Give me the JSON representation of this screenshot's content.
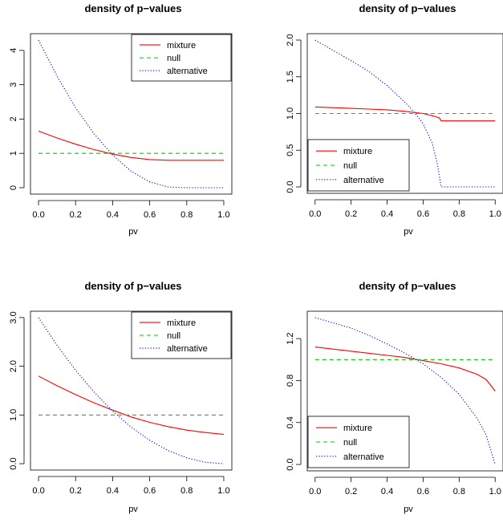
{
  "chart_data": [
    {
      "type": "line",
      "title": "density of p−values",
      "xlabel": "pv",
      "ylabel": "",
      "xlim": [
        0,
        1
      ],
      "ylim": [
        0,
        4.3
      ],
      "xticks": [
        "0.0",
        "0.2",
        "0.4",
        "0.6",
        "0.8",
        "1.0"
      ],
      "yticks": [
        "0",
        "1",
        "2",
        "3",
        "4"
      ],
      "legend_position": "top-right",
      "series": [
        {
          "name": "mixture",
          "color": "#ff0000",
          "style": "solid",
          "x": [
            0,
            0.1,
            0.2,
            0.3,
            0.4,
            0.5,
            0.6,
            0.7,
            0.8,
            0.9,
            1.0
          ],
          "y": [
            1.65,
            1.45,
            1.27,
            1.11,
            0.98,
            0.88,
            0.82,
            0.8,
            0.8,
            0.8,
            0.8
          ]
        },
        {
          "name": "null",
          "color": "#00cc00",
          "style": "dashed",
          "x": [
            0,
            1
          ],
          "y": [
            1,
            1
          ]
        },
        {
          "name": "alternative",
          "color": "#0000ff",
          "style": "dotted",
          "x": [
            0,
            0.1,
            0.2,
            0.3,
            0.4,
            0.5,
            0.6,
            0.7,
            0.8,
            0.9,
            1.0
          ],
          "y": [
            4.3,
            3.25,
            2.33,
            1.57,
            0.95,
            0.48,
            0.17,
            0.02,
            0,
            0,
            0
          ]
        }
      ]
    },
    {
      "type": "line",
      "title": "density of p−values",
      "xlabel": "pv",
      "ylabel": "",
      "xlim": [
        0,
        1
      ],
      "ylim": [
        0,
        2.0
      ],
      "xticks": [
        "0.0",
        "0.2",
        "0.4",
        "0.6",
        "0.8",
        "1.0"
      ],
      "yticks": [
        "0.0",
        "0.5",
        "1.0",
        "1.5",
        "2.0"
      ],
      "legend_position": "bottom-left",
      "series": [
        {
          "name": "mixture",
          "color": "#ff0000",
          "style": "solid",
          "x": [
            0,
            0.1,
            0.2,
            0.3,
            0.4,
            0.5,
            0.6,
            0.65,
            0.69,
            0.7,
            0.8,
            0.9,
            1.0
          ],
          "y": [
            1.09,
            1.08,
            1.07,
            1.06,
            1.05,
            1.03,
            1.0,
            0.97,
            0.94,
            0.9,
            0.9,
            0.9,
            0.9
          ]
        },
        {
          "name": "null",
          "color": "#00cc00",
          "style": "dashed",
          "x": [
            0,
            1
          ],
          "y": [
            1,
            1
          ]
        },
        {
          "name": "alternative",
          "color": "#0000ff",
          "style": "dotted",
          "x": [
            0,
            0.1,
            0.2,
            0.3,
            0.4,
            0.5,
            0.55,
            0.6,
            0.65,
            0.68,
            0.7,
            0.8,
            0.9,
            1.0
          ],
          "y": [
            2.0,
            1.86,
            1.72,
            1.57,
            1.38,
            1.15,
            1.02,
            0.86,
            0.6,
            0.3,
            0,
            0,
            0,
            0
          ]
        }
      ]
    },
    {
      "type": "line",
      "title": "density of p−values",
      "xlabel": "pv",
      "ylabel": "",
      "xlim": [
        0,
        1
      ],
      "ylim": [
        0,
        3.0
      ],
      "xticks": [
        "0.0",
        "0.2",
        "0.4",
        "0.6",
        "0.8",
        "1.0"
      ],
      "yticks": [
        "0.0",
        "1.0",
        "2.0",
        "3.0"
      ],
      "legend_position": "top-right",
      "series": [
        {
          "name": "mixture",
          "color": "#ff0000",
          "style": "solid",
          "x": [
            0,
            0.1,
            0.2,
            0.3,
            0.4,
            0.5,
            0.6,
            0.7,
            0.8,
            0.9,
            1.0
          ],
          "y": [
            1.8,
            1.6,
            1.42,
            1.25,
            1.1,
            0.96,
            0.85,
            0.76,
            0.69,
            0.64,
            0.6
          ]
        },
        {
          "name": "null",
          "color": "#00cc00",
          "style": "dashed",
          "x": [
            0,
            1
          ],
          "y": [
            1,
            1
          ]
        },
        {
          "name": "alternative",
          "color": "#0000ff",
          "style": "dotted",
          "x": [
            0,
            0.1,
            0.2,
            0.3,
            0.4,
            0.5,
            0.6,
            0.7,
            0.8,
            0.9,
            1.0
          ],
          "y": [
            3.0,
            2.43,
            1.92,
            1.47,
            1.08,
            0.75,
            0.48,
            0.27,
            0.12,
            0.03,
            0
          ]
        }
      ]
    },
    {
      "type": "line",
      "title": "density of p−values",
      "xlabel": "pv",
      "ylabel": "",
      "xlim": [
        0,
        1
      ],
      "ylim": [
        0,
        1.4
      ],
      "xticks": [
        "0.0",
        "0.2",
        "0.4",
        "0.6",
        "0.8",
        "1.0"
      ],
      "yticks": [
        "0.0",
        "0.4",
        "0.8",
        "1.2"
      ],
      "legend_position": "bottom-left",
      "series": [
        {
          "name": "mixture",
          "color": "#ff0000",
          "style": "solid",
          "x": [
            0,
            0.1,
            0.2,
            0.3,
            0.4,
            0.5,
            0.6,
            0.7,
            0.8,
            0.9,
            0.95,
            1.0
          ],
          "y": [
            1.12,
            1.1,
            1.08,
            1.06,
            1.04,
            1.02,
            0.99,
            0.96,
            0.92,
            0.86,
            0.81,
            0.7
          ]
        },
        {
          "name": "null",
          "color": "#00cc00",
          "style": "dashed",
          "x": [
            0,
            1
          ],
          "y": [
            1,
            1
          ]
        },
        {
          "name": "alternative",
          "color": "#0000ff",
          "style": "dotted",
          "x": [
            0,
            0.1,
            0.2,
            0.3,
            0.4,
            0.5,
            0.6,
            0.7,
            0.8,
            0.9,
            0.95,
            1.0
          ],
          "y": [
            1.4,
            1.35,
            1.3,
            1.23,
            1.15,
            1.06,
            0.96,
            0.83,
            0.67,
            0.44,
            0.28,
            0
          ]
        }
      ]
    }
  ]
}
